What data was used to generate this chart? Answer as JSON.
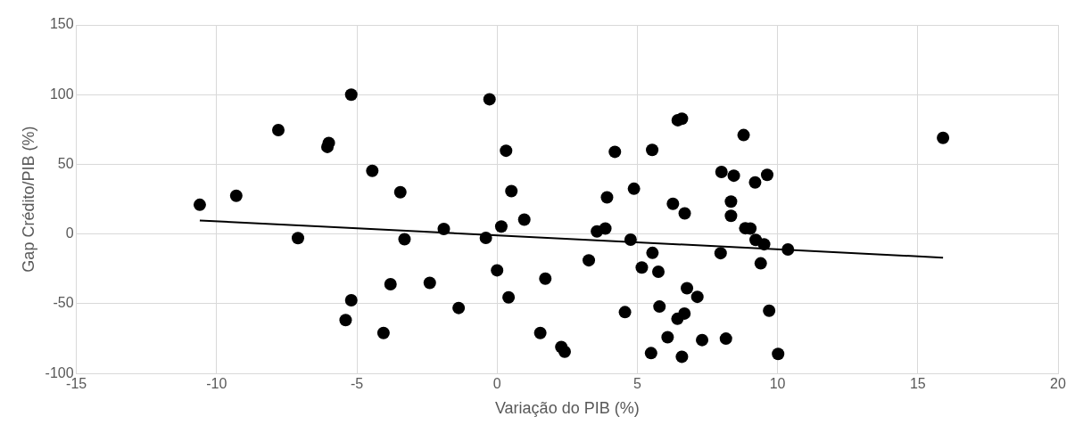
{
  "chart_data": {
    "type": "scatter",
    "xlabel": "Variação do PIB (%)",
    "ylabel": "Gap Crédito/PIB (%)",
    "xlim": [
      -15,
      20
    ],
    "xticks": [
      -15,
      -10,
      -5,
      0,
      5,
      10,
      15,
      20
    ],
    "ylim": [
      -100,
      150
    ],
    "yticks": [
      -100,
      -50,
      0,
      50,
      100,
      150
    ],
    "grid": true,
    "legend": false,
    "marker": "circle",
    "series": [
      {
        "color": "#000000",
        "x": [
          -10.6,
          -9.3,
          -7.8,
          -7.1,
          -5.2,
          -6.0,
          -6.05,
          -4.45,
          -3.45,
          -3.3,
          -1.9,
          -0.4,
          -0.27,
          0.15,
          0,
          -3.8,
          -2.4,
          -5.2,
          -5.4,
          -4.05,
          -1.37,
          0.32,
          0.51,
          0.97,
          0.41,
          1.72,
          1.54,
          2.29,
          2.41,
          3.27,
          3.56,
          3.86,
          3.92,
          4.2,
          4.88,
          4.76,
          4.56,
          5.53,
          5.54,
          5.16,
          5.75,
          5.79,
          5.49,
          6.08,
          6.27,
          6.44,
          6.59,
          6.69,
          6.77,
          7.14,
          6.43,
          6.68,
          6.59,
          7.31,
          8.0,
          8.44,
          8.34,
          8.34,
          8.79,
          7.97,
          8.16,
          8.85,
          9.03,
          9.22,
          9.52,
          9.2,
          9.63,
          9.4,
          9.7,
          10.02,
          10.37,
          15.9
        ],
        "values": [
          21,
          27.5,
          74.6,
          -2.9,
          100,
          65.4,
          62.5,
          45.4,
          30,
          -3.7,
          3.7,
          -2.7,
          96.7,
          5.4,
          -26,
          -36,
          -35,
          -47.5,
          -61.7,
          -71,
          -53,
          59.8,
          30.8,
          10.4,
          -45.4,
          -32,
          -71,
          -81,
          -84.4,
          -18.8,
          1.9,
          4,
          26.3,
          59,
          32.5,
          -4,
          -56,
          60.4,
          -13.5,
          -24,
          -27,
          -52,
          -85.4,
          -74,
          21.7,
          81.7,
          82.7,
          14.8,
          -38.8,
          -45,
          -60.8,
          -57,
          -88,
          -76,
          44.6,
          41.9,
          23.3,
          13.1,
          71,
          -13.7,
          -75,
          4.2,
          4,
          -4.2,
          -7.3,
          37,
          42.5,
          -21,
          -55,
          -86,
          -11,
          69
        ]
      },
      {
        "type": "line",
        "color": "#000000",
        "marker": "none",
        "x": [
          -10.6,
          15.9
        ],
        "values": [
          9.8,
          -16.9
        ]
      }
    ]
  }
}
